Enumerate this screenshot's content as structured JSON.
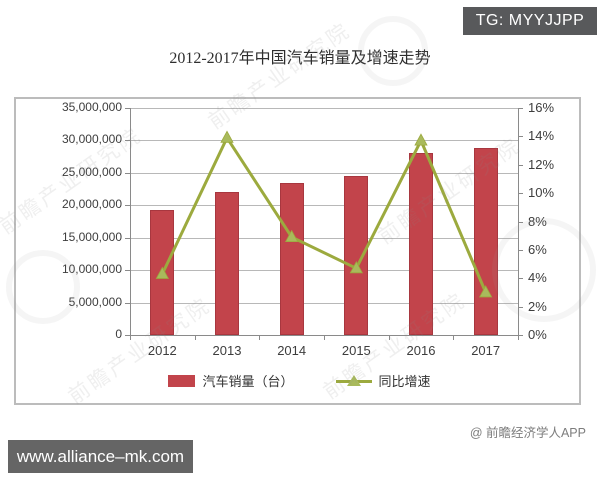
{
  "page": {
    "top_right_badge": "TG: MYYJJPP",
    "credit": "@ 前瞻经济学人APP",
    "site_badge": "www.alliance–mk.com",
    "watermark_text": "前瞻产业研究院"
  },
  "chart_data": {
    "type": "bar",
    "combo": "bar+line",
    "title": "2012-2017年中国汽车销量及增速走势",
    "categories": [
      "2012",
      "2013",
      "2014",
      "2015",
      "2016",
      "2017"
    ],
    "series": [
      {
        "name": "汽车销量（台）",
        "type": "bar",
        "axis": "left",
        "color": "#c2444b",
        "values": [
          19300000,
          22000000,
          23500000,
          24600000,
          28000000,
          28900000
        ]
      },
      {
        "name": "同比增速",
        "type": "line",
        "axis": "right",
        "unit": "%",
        "color": "#9caa3e",
        "marker": "triangle",
        "marker_color": "#a9ba5c",
        "values": [
          4.3,
          13.9,
          6.9,
          4.7,
          13.7,
          3.0
        ]
      }
    ],
    "left_axis": {
      "min": 0,
      "max": 35000000,
      "step": 5000000,
      "labels_top_to_bottom": [
        "35,000,000",
        "30,000,000",
        "25,000,000",
        "20,000,000",
        "15,000,000",
        "10,000,000",
        "5,000,000",
        "0"
      ]
    },
    "right_axis": {
      "min": 0,
      "max": 16,
      "step": 2,
      "labels_top_to_bottom": [
        "16%",
        "14%",
        "12%",
        "10%",
        "8%",
        "6%",
        "4%",
        "2%",
        "0%"
      ]
    },
    "grid": true,
    "legend_position": "bottom"
  }
}
